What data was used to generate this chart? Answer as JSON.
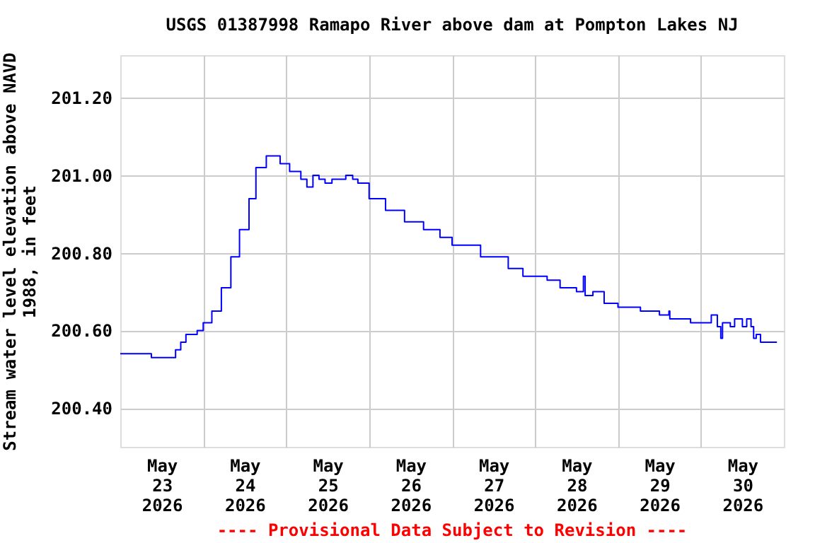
{
  "chart_data": {
    "type": "step",
    "title": "USGS 01387998 Ramapo River above dam at Pompton Lakes NJ",
    "ylabel": "Stream water level elevation above NAVD\n1988, in feet",
    "annotations": [
      "---- Provisional Data Subject to Revision ----"
    ],
    "grid": true,
    "xlim": [
      "2026-05-23T00:00",
      "2026-05-31T00:00"
    ],
    "ylim": [
      200.3,
      201.31
    ],
    "xticks": [
      {
        "value": "2026-05-23T12:00",
        "label": "May 23 2026"
      },
      {
        "value": "2026-05-24T12:00",
        "label": "May 24 2026"
      },
      {
        "value": "2026-05-25T12:00",
        "label": "May 25 2026"
      },
      {
        "value": "2026-05-26T12:00",
        "label": "May 26 2026"
      },
      {
        "value": "2026-05-27T12:00",
        "label": "May 27 2026"
      },
      {
        "value": "2026-05-28T12:00",
        "label": "May 28 2026"
      },
      {
        "value": "2026-05-29T12:00",
        "label": "May 29 2026"
      },
      {
        "value": "2026-05-30T12:00",
        "label": "May 30 2026"
      },
      {
        "value": "2026-05-24T00:00",
        "label": null
      },
      {
        "value": "2026-05-25T00:00",
        "label": null
      },
      {
        "value": "2026-05-26T00:00",
        "label": null
      },
      {
        "value": "2026-05-27T00:00",
        "label": null
      },
      {
        "value": "2026-05-28T00:00",
        "label": null
      },
      {
        "value": "2026-05-29T00:00",
        "label": null
      },
      {
        "value": "2026-05-30T00:00",
        "label": null
      }
    ],
    "yticks": [
      {
        "value": 200.4,
        "label": "200.40"
      },
      {
        "value": 200.6,
        "label": "200.60"
      },
      {
        "value": 200.8,
        "label": "200.80"
      },
      {
        "value": 201.0,
        "label": "201.00"
      },
      {
        "value": 201.2,
        "label": "201.20"
      }
    ],
    "series": [
      {
        "color": "#0000ff",
        "x": [
          "2026-05-23T00:00",
          "2026-05-23T08:30",
          "2026-05-23T09:00",
          "2026-05-23T15:30",
          "2026-05-23T16:00",
          "2026-05-23T17:30",
          "2026-05-23T19:00",
          "2026-05-23T22:15",
          "2026-05-24T00:00",
          "2026-05-24T02:30",
          "2026-05-24T05:15",
          "2026-05-24T08:00",
          "2026-05-24T10:30",
          "2026-05-24T13:15",
          "2026-05-24T15:15",
          "2026-05-24T18:15",
          "2026-05-24T21:00",
          "2026-05-24T22:15",
          "2026-05-25T01:00",
          "2026-05-25T04:15",
          "2026-05-25T06:00",
          "2026-05-25T07:45",
          "2026-05-25T09:30",
          "2026-05-25T11:15",
          "2026-05-25T13:15",
          "2026-05-25T15:15",
          "2026-05-25T17:15",
          "2026-05-25T19:15",
          "2026-05-25T20:45",
          "2026-05-26T00:00",
          "2026-05-26T04:45",
          "2026-05-26T10:15",
          "2026-05-26T15:45",
          "2026-05-26T20:30",
          "2026-05-27T00:00",
          "2026-05-27T08:15",
          "2026-05-27T16:15",
          "2026-05-27T20:30",
          "2026-05-28T03:30",
          "2026-05-28T07:15",
          "2026-05-28T12:00",
          "2026-05-28T14:00",
          "2026-05-28T14:30",
          "2026-05-28T16:45",
          "2026-05-28T20:00",
          "2026-05-29T00:00",
          "2026-05-29T06:30",
          "2026-05-29T12:00",
          "2026-05-29T14:45",
          "2026-05-29T15:00",
          "2026-05-29T19:15",
          "2026-05-29T21:00",
          "2026-05-30T01:00",
          "2026-05-30T03:00",
          "2026-05-30T04:45",
          "2026-05-30T05:45",
          "2026-05-30T06:15",
          "2026-05-30T08:30",
          "2026-05-30T09:45",
          "2026-05-30T12:00",
          "2026-05-30T13:15",
          "2026-05-30T14:30",
          "2026-05-30T15:15",
          "2026-05-30T16:00",
          "2026-05-30T17:15",
          "2026-05-30T22:00"
        ],
        "values": [
          200.54,
          200.54,
          200.53,
          200.53,
          200.55,
          200.57,
          200.59,
          200.6,
          200.62,
          200.65,
          200.71,
          200.79,
          200.86,
          200.94,
          201.02,
          201.05,
          201.05,
          201.03,
          201.01,
          200.99,
          200.97,
          201.0,
          200.99,
          200.98,
          200.99,
          200.99,
          201.0,
          200.99,
          200.98,
          200.94,
          200.91,
          200.88,
          200.86,
          200.84,
          200.82,
          200.79,
          200.76,
          200.74,
          200.73,
          200.71,
          200.7,
          200.74,
          200.69,
          200.7,
          200.67,
          200.66,
          200.65,
          200.64,
          200.65,
          200.63,
          200.63,
          200.62,
          200.62,
          200.64,
          200.61,
          200.58,
          200.62,
          200.61,
          200.63,
          200.61,
          200.63,
          200.61,
          200.58,
          200.59,
          200.57,
          200.57
        ]
      }
    ]
  }
}
